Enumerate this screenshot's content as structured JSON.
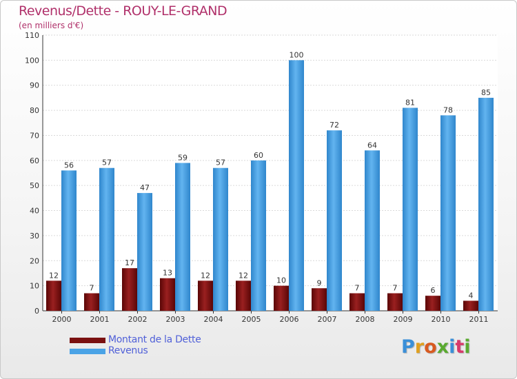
{
  "chart_data": {
    "type": "bar",
    "title": "Revenus/Dette - ROUY-LE-GRAND",
    "subtitle": "(en milliers d'€)",
    "xlabel": "",
    "ylabel": "",
    "ylim": [
      0,
      110
    ],
    "yticks": [
      0,
      10,
      20,
      30,
      40,
      50,
      60,
      70,
      80,
      90,
      100,
      110
    ],
    "grid": true,
    "legend_position": "bottom-left",
    "categories": [
      "2000",
      "2001",
      "2002",
      "2003",
      "2004",
      "2005",
      "2006",
      "2007",
      "2008",
      "2009",
      "2010",
      "2011"
    ],
    "series": [
      {
        "name": "Montant de la Dette",
        "color": "#7a1010",
        "values": [
          12,
          7,
          17,
          13,
          12,
          12,
          10,
          9,
          7,
          7,
          6,
          4
        ]
      },
      {
        "name": "Revenus",
        "color": "#4aa3e6",
        "values": [
          56,
          57,
          47,
          59,
          57,
          60,
          100,
          72,
          64,
          81,
          78,
          85
        ]
      }
    ]
  },
  "logo": {
    "text": "Proxiti",
    "letter_colors": [
      "#3a8fd8",
      "#e0a020",
      "#d85a20",
      "#5aaa30",
      "#3a8fd8",
      "#d83a6a",
      "#5aaa30"
    ]
  }
}
